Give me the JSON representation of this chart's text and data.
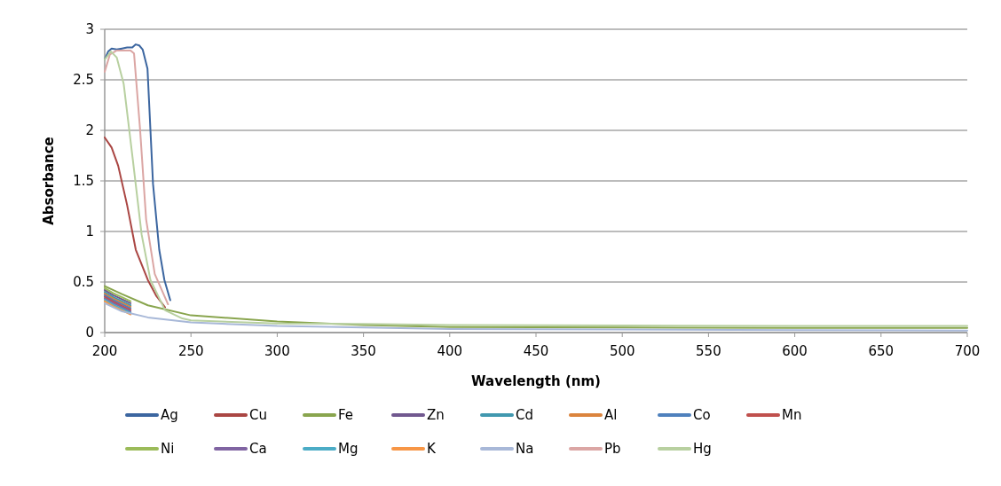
{
  "chart_data": {
    "type": "line",
    "xlabel": "Wavelength (nm)",
    "ylabel": "Absorbance",
    "xlim": [
      200,
      700
    ],
    "ylim": [
      0,
      3
    ],
    "xticks": [
      200,
      250,
      300,
      350,
      400,
      450,
      500,
      550,
      600,
      650,
      700
    ],
    "yticks": [
      0,
      0.5,
      1,
      1.5,
      2,
      2.5,
      3
    ],
    "grid": "y",
    "legend": "bottom",
    "line_style": "solid",
    "marker": "none",
    "series": [
      {
        "name": "Ag",
        "color": "#3c66a0",
        "x": [
          200,
          202,
          204,
          207,
          210,
          213,
          216,
          218,
          220,
          222,
          224.8,
          228,
          231.6,
          234.6,
          238
        ],
        "values": [
          2.7,
          2.78,
          2.81,
          2.8,
          2.81,
          2.82,
          2.82,
          2.85,
          2.84,
          2.8,
          2.61,
          1.47,
          0.82,
          0.52,
          0.32
        ]
      },
      {
        "name": "Cu",
        "color": "#aa4643",
        "x": [
          200,
          204,
          207.8,
          213,
          218,
          225,
          230,
          235
        ],
        "values": [
          1.93,
          1.83,
          1.65,
          1.26,
          0.82,
          0.52,
          0.36,
          0.25
        ]
      },
      {
        "name": "Fe",
        "color": "#89a54e",
        "x": [
          200,
          210,
          225,
          250,
          300,
          350,
          400,
          500,
          600,
          700
        ],
        "values": [
          0.46,
          0.38,
          0.27,
          0.17,
          0.11,
          0.075,
          0.055,
          0.05,
          0.045,
          0.045
        ]
      },
      {
        "name": "Zn",
        "color": "#71588f",
        "x": [
          200,
          205,
          210,
          215
        ],
        "values": [
          0.42,
          0.37,
          0.33,
          0.29
        ]
      },
      {
        "name": "Cd",
        "color": "#4198af",
        "x": [
          200,
          205,
          210,
          215
        ],
        "values": [
          0.4,
          0.35,
          0.31,
          0.27
        ]
      },
      {
        "name": "Al",
        "color": "#db843d",
        "x": [
          200,
          205,
          210,
          215
        ],
        "values": [
          0.385,
          0.335,
          0.295,
          0.255
        ]
      },
      {
        "name": "Co",
        "color": "#4f81bd",
        "x": [
          200,
          205,
          210,
          215
        ],
        "values": [
          0.37,
          0.32,
          0.28,
          0.24
        ]
      },
      {
        "name": "Mn",
        "color": "#c0504d",
        "x": [
          200,
          205,
          210,
          215
        ],
        "values": [
          0.355,
          0.305,
          0.265,
          0.225
        ]
      },
      {
        "name": "Ni",
        "color": "#9bbb59",
        "x": [
          200,
          205,
          210,
          215
        ],
        "values": [
          0.44,
          0.39,
          0.35,
          0.31
        ]
      },
      {
        "name": "Ca",
        "color": "#8064a2",
        "x": [
          200,
          205,
          210,
          215
        ],
        "values": [
          0.34,
          0.29,
          0.25,
          0.21
        ]
      },
      {
        "name": "Mg",
        "color": "#4bacc6",
        "x": [
          200,
          205,
          210,
          215
        ],
        "values": [
          0.325,
          0.275,
          0.235,
          0.195
        ]
      },
      {
        "name": "K",
        "color": "#f79646",
        "x": [
          200,
          205,
          210,
          215
        ],
        "values": [
          0.31,
          0.26,
          0.22,
          0.18
        ]
      },
      {
        "name": "Na",
        "color": "#a8b8d8",
        "x": [
          200,
          210,
          225,
          250,
          300,
          350,
          400,
          500,
          600,
          700
        ],
        "values": [
          0.29,
          0.21,
          0.15,
          0.1,
          0.065,
          0.05,
          0.035,
          0.03,
          0.025,
          0.02
        ]
      },
      {
        "name": "Pb",
        "color": "#dba6a4",
        "x": [
          200,
          203,
          207,
          211,
          215,
          217,
          220.5,
          224,
          229,
          236.7
        ],
        "values": [
          2.58,
          2.75,
          2.79,
          2.79,
          2.79,
          2.76,
          2.01,
          1.12,
          0.58,
          0.28
        ]
      },
      {
        "name": "Hg",
        "color": "#b8d0a0",
        "x": [
          200,
          203.6,
          207,
          211,
          216.3,
          221.4,
          226.5,
          235,
          245,
          250,
          300,
          350,
          400,
          500,
          600,
          700
        ],
        "values": [
          2.7,
          2.78,
          2.72,
          2.46,
          1.71,
          0.97,
          0.52,
          0.22,
          0.14,
          0.12,
          0.09,
          0.085,
          0.075,
          0.07,
          0.065,
          0.065
        ]
      }
    ]
  }
}
